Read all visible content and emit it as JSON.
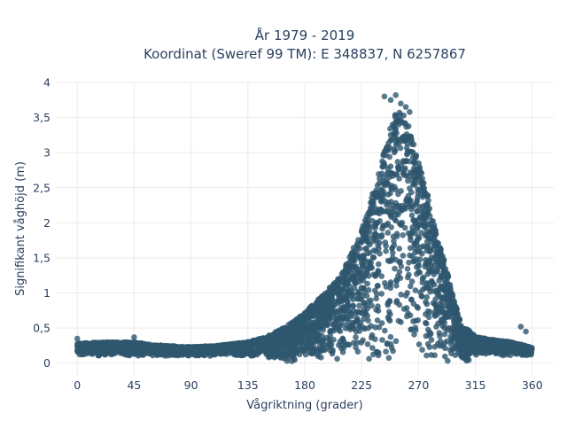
{
  "chart_data": {
    "type": "scatter",
    "title": [
      "År 1979 - 2019",
      "Koordinat (Sweref 99 TM): E 348837, N 6257867"
    ],
    "xlabel": "Vågriktning (grader)",
    "ylabel": "Signifikant våghöjd (m)",
    "xlim": [
      -17,
      377
    ],
    "ylim": [
      -0.18,
      4.0
    ],
    "xticks": [
      0,
      45,
      90,
      135,
      180,
      225,
      270,
      315,
      360
    ],
    "xtick_labels": [
      "0",
      "45",
      "90",
      "135",
      "180",
      "225",
      "270",
      "315",
      "360"
    ],
    "yticks": [
      0,
      0.5,
      1,
      1.5,
      2,
      2.5,
      3,
      3.5,
      4
    ],
    "ytick_labels": [
      "0",
      "0,5",
      "1",
      "1,5",
      "2",
      "2,5",
      "3",
      "3,5",
      "4"
    ],
    "grid": true,
    "legend": "none",
    "marker_color": "#2e566e",
    "series": [
      {
        "density_envelope": {
          "direction_deg": [
            0,
            20,
            45,
            60,
            90,
            110,
            135,
            150,
            165,
            180,
            195,
            210,
            225,
            235,
            245,
            252,
            258,
            263,
            268,
            275,
            282,
            290,
            298,
            305,
            315,
            330,
            345,
            360
          ],
          "max_height_m": [
            0.28,
            0.3,
            0.3,
            0.26,
            0.23,
            0.25,
            0.3,
            0.38,
            0.52,
            0.72,
            0.98,
            1.3,
            1.9,
            2.5,
            3.2,
            3.6,
            3.55,
            3.35,
            3.0,
            2.6,
            2.0,
            1.5,
            0.9,
            0.55,
            0.38,
            0.33,
            0.3,
            0.22
          ]
        },
        "outliers": [
          {
            "x": 0,
            "y": 0.35
          },
          {
            "x": 45,
            "y": 0.37
          },
          {
            "x": 243,
            "y": 3.8
          },
          {
            "x": 248,
            "y": 3.75
          },
          {
            "x": 252,
            "y": 3.82
          },
          {
            "x": 256,
            "y": 3.7
          },
          {
            "x": 260,
            "y": 3.65
          },
          {
            "x": 263,
            "y": 3.58
          },
          {
            "x": 351,
            "y": 0.52
          },
          {
            "x": 355,
            "y": 0.45
          }
        ]
      }
    ]
  }
}
